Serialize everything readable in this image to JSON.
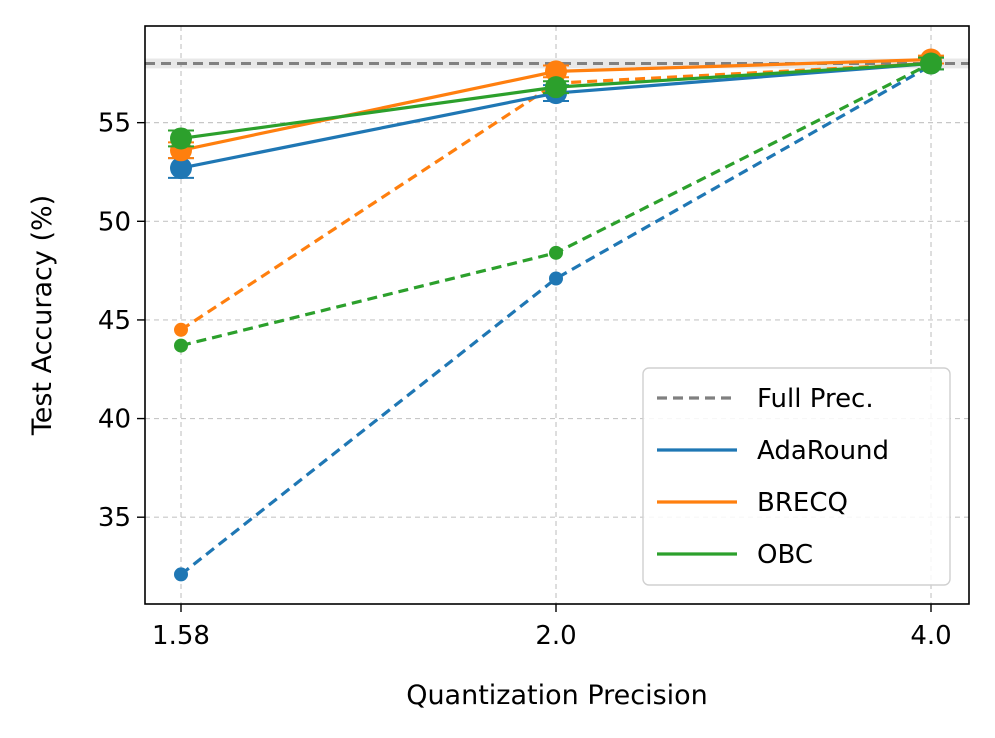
{
  "chart_data": {
    "type": "line",
    "title": "",
    "xlabel": "Quantization Precision",
    "ylabel": "Test Accuracy (%)",
    "x_categories": [
      "1.58",
      "2.0",
      "4.0"
    ],
    "ylim": [
      30.6,
      59.9
    ],
    "yticks": [
      35,
      40,
      45,
      50,
      55
    ],
    "grid": true,
    "legend_position": "lower-right",
    "full_precision": {
      "label": "Full Prec.",
      "value": 58.0,
      "band": [
        57.75,
        58.25
      ],
      "color": "#808080"
    },
    "series": [
      {
        "name": "AdaRound",
        "color": "#1f77b4",
        "values": [
          52.7,
          56.5,
          58.0
        ],
        "errors": [
          0.5,
          0.4,
          0.3
        ],
        "baseline": [
          32.1,
          47.1,
          57.9
        ]
      },
      {
        "name": "BRECQ",
        "color": "#ff7f0e",
        "values": [
          53.6,
          57.6,
          58.2
        ],
        "errors": [
          0.4,
          0.3,
          0.2
        ],
        "baseline": [
          44.5,
          57.0,
          58.0
        ]
      },
      {
        "name": "OBC",
        "color": "#2ca02c",
        "values": [
          54.2,
          56.8,
          58.0
        ],
        "errors": [
          0.4,
          0.3,
          0.3
        ],
        "baseline": [
          43.7,
          48.4,
          58.0
        ]
      }
    ]
  }
}
